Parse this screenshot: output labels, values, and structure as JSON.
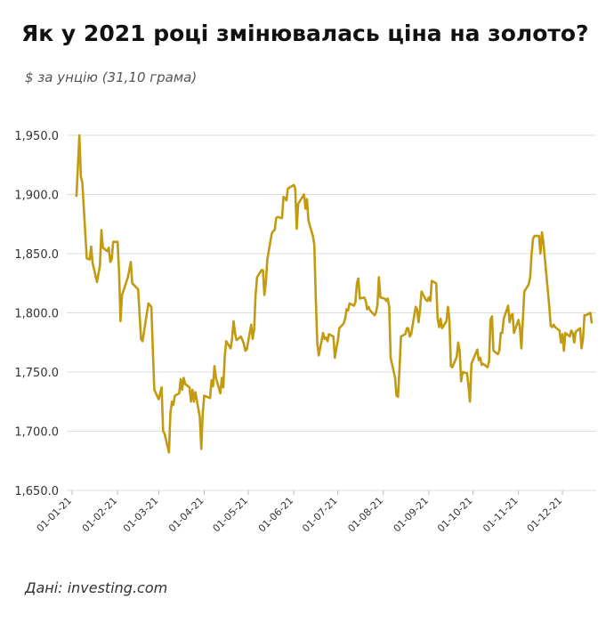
{
  "chart_data": {
    "type": "line",
    "title": "Як у 2021 році змінювалась ціна на золото?",
    "subtitle": "$ за унцію (31,10 грама)",
    "source": "Дані: investing.com",
    "x": [
      "2021-01-04",
      "2021-01-06",
      "2021-01-07",
      "2021-01-08",
      "2021-01-11",
      "2021-01-13",
      "2021-01-14",
      "2021-01-15",
      "2021-01-18",
      "2021-01-20",
      "2021-01-21",
      "2021-01-22",
      "2021-01-25",
      "2021-01-26",
      "2021-01-27",
      "2021-01-28",
      "2021-01-29",
      "2021-02-01",
      "2021-02-02",
      "2021-02-03",
      "2021-02-04",
      "2021-02-08",
      "2021-02-10",
      "2021-02-11",
      "2021-02-15",
      "2021-02-17",
      "2021-02-18",
      "2021-02-22",
      "2021-02-24",
      "2021-02-25",
      "2021-02-26",
      "2021-03-01",
      "2021-03-03",
      "2021-03-04",
      "2021-03-05",
      "2021-03-08",
      "2021-03-09",
      "2021-03-10",
      "2021-03-11",
      "2021-03-12",
      "2021-03-15",
      "2021-03-16",
      "2021-03-17",
      "2021-03-18",
      "2021-03-19",
      "2021-03-22",
      "2021-03-23",
      "2021-03-24",
      "2021-03-25",
      "2021-03-26",
      "2021-03-29",
      "2021-03-30",
      "2021-03-31",
      "2021-04-01",
      "2021-04-05",
      "2021-04-06",
      "2021-04-07",
      "2021-04-08",
      "2021-04-09",
      "2021-04-12",
      "2021-04-13",
      "2021-04-14",
      "2021-04-15",
      "2021-04-16",
      "2021-04-19",
      "2021-04-20",
      "2021-04-21",
      "2021-04-22",
      "2021-04-23",
      "2021-04-26",
      "2021-04-27",
      "2021-04-28",
      "2021-04-29",
      "2021-04-30",
      "2021-05-03",
      "2021-05-04",
      "2021-05-05",
      "2021-05-06",
      "2021-05-07",
      "2021-05-10",
      "2021-05-11",
      "2021-05-12",
      "2021-05-13",
      "2021-05-14",
      "2021-05-17",
      "2021-05-18",
      "2021-05-19",
      "2021-05-20",
      "2021-05-21",
      "2021-05-24",
      "2021-05-25",
      "2021-05-26",
      "2021-05-27",
      "2021-05-28",
      "2021-06-01",
      "2021-06-02",
      "2021-06-03",
      "2021-06-04",
      "2021-06-07",
      "2021-06-08",
      "2021-06-09",
      "2021-06-10",
      "2021-06-11",
      "2021-06-14",
      "2021-06-15",
      "2021-06-16",
      "2021-06-17",
      "2021-06-18",
      "2021-06-21",
      "2021-06-22",
      "2021-06-23",
      "2021-06-24",
      "2021-06-25",
      "2021-06-28",
      "2021-06-29",
      "2021-06-30",
      "2021-07-01",
      "2021-07-02",
      "2021-07-05",
      "2021-07-06",
      "2021-07-07",
      "2021-07-08",
      "2021-07-09",
      "2021-07-12",
      "2021-07-13",
      "2021-07-14",
      "2021-07-15",
      "2021-07-16",
      "2021-07-19",
      "2021-07-20",
      "2021-07-21",
      "2021-07-22",
      "2021-07-23",
      "2021-07-26",
      "2021-07-27",
      "2021-07-28",
      "2021-07-29",
      "2021-07-30",
      "2021-08-02",
      "2021-08-03",
      "2021-08-04",
      "2021-08-05",
      "2021-08-06",
      "2021-08-09",
      "2021-08-10",
      "2021-08-11",
      "2021-08-12",
      "2021-08-13",
      "2021-08-16",
      "2021-08-17",
      "2021-08-18",
      "2021-08-19",
      "2021-08-20",
      "2021-08-23",
      "2021-08-24",
      "2021-08-25",
      "2021-08-26",
      "2021-08-27",
      "2021-08-30",
      "2021-08-31",
      "2021-09-01",
      "2021-09-02",
      "2021-09-03",
      "2021-09-06",
      "2021-09-07",
      "2021-09-08",
      "2021-09-09",
      "2021-09-10",
      "2021-09-13",
      "2021-09-14",
      "2021-09-15",
      "2021-09-16",
      "2021-09-17",
      "2021-09-20",
      "2021-09-21",
      "2021-09-22",
      "2021-09-23",
      "2021-09-24",
      "2021-09-27",
      "2021-09-28",
      "2021-09-29",
      "2021-09-30",
      "2021-10-01",
      "2021-10-04",
      "2021-10-05",
      "2021-10-06",
      "2021-10-07",
      "2021-10-08",
      "2021-10-11",
      "2021-10-12",
      "2021-10-13",
      "2021-10-14",
      "2021-10-15",
      "2021-10-18",
      "2021-10-19",
      "2021-10-20",
      "2021-10-21",
      "2021-10-22",
      "2021-10-25",
      "2021-10-26",
      "2021-10-27",
      "2021-10-28",
      "2021-10-29",
      "2021-11-01",
      "2021-11-02",
      "2021-11-03",
      "2021-11-04",
      "2021-11-05",
      "2021-11-08",
      "2021-11-09",
      "2021-11-10",
      "2021-11-11",
      "2021-11-12",
      "2021-11-15",
      "2021-11-16",
      "2021-11-17",
      "2021-11-18",
      "2021-11-19",
      "2021-11-22",
      "2021-11-23",
      "2021-11-24",
      "2021-11-25",
      "2021-11-26",
      "2021-11-29",
      "2021-11-30",
      "2021-12-01",
      "2021-12-02",
      "2021-12-03",
      "2021-12-06",
      "2021-12-07",
      "2021-12-08",
      "2021-12-09",
      "2021-12-10",
      "2021-12-13",
      "2021-12-14",
      "2021-12-15",
      "2021-12-16",
      "2021-12-17",
      "2021-12-20",
      "2021-12-21"
    ],
    "series": [
      {
        "color": "#c39b10",
        "values": [
          1898,
          1950,
          1915,
          1910,
          1846,
          1845,
          1856,
          1842,
          1826,
          1840,
          1870,
          1855,
          1852,
          1855,
          1843,
          1845,
          1860,
          1860,
          1835,
          1793,
          1815,
          1830,
          1843,
          1825,
          1820,
          1778,
          1776,
          1808,
          1805,
          1770,
          1735,
          1727,
          1737,
          1700,
          1698,
          1682,
          1715,
          1725,
          1722,
          1730,
          1732,
          1744,
          1735,
          1745,
          1740,
          1737,
          1725,
          1735,
          1725,
          1733,
          1712,
          1685,
          1715,
          1730,
          1728,
          1743,
          1738,
          1755,
          1745,
          1732,
          1745,
          1737,
          1763,
          1776,
          1770,
          1778,
          1793,
          1783,
          1777,
          1780,
          1777,
          1774,
          1768,
          1769,
          1790,
          1778,
          1786,
          1815,
          1830,
          1836,
          1836,
          1815,
          1826,
          1845,
          1867,
          1869,
          1870,
          1880,
          1881,
          1880,
          1898,
          1897,
          1895,
          1905,
          1908,
          1905,
          1871,
          1892,
          1898,
          1900,
          1888,
          1896,
          1878,
          1865,
          1858,
          1812,
          1775,
          1764,
          1783,
          1778,
          1779,
          1776,
          1782,
          1780,
          1762,
          1770,
          1776,
          1787,
          1791,
          1795,
          1803,
          1802,
          1808,
          1806,
          1809,
          1825,
          1829,
          1812,
          1813,
          1810,
          1803,
          1805,
          1802,
          1798,
          1800,
          1807,
          1830,
          1813,
          1812,
          1810,
          1812,
          1805,
          1762,
          1745,
          1730,
          1729,
          1752,
          1780,
          1782,
          1787,
          1787,
          1780,
          1782,
          1805,
          1803,
          1792,
          1803,
          1818,
          1811,
          1810,
          1813,
          1810,
          1827,
          1825,
          1795,
          1788,
          1795,
          1787,
          1793,
          1805,
          1795,
          1755,
          1754,
          1763,
          1775,
          1768,
          1742,
          1750,
          1749,
          1738,
          1725,
          1757,
          1760,
          1769,
          1760,
          1762,
          1756,
          1757,
          1754,
          1759,
          1794,
          1797,
          1768,
          1765,
          1768,
          1783,
          1783,
          1795,
          1806,
          1792,
          1798,
          1799,
          1783,
          1794,
          1788,
          1770,
          1793,
          1818,
          1824,
          1830,
          1850,
          1863,
          1865,
          1865,
          1850,
          1868,
          1860,
          1846,
          1806,
          1789,
          1788,
          1790,
          1788,
          1785,
          1775,
          1782,
          1768,
          1783,
          1780,
          1785,
          1783,
          1775,
          1784,
          1787,
          1770,
          1778,
          1798,
          1798,
          1800,
          1791
        ]
      }
    ],
    "xlim": [
      "2021-01-01",
      "2021-12-24"
    ],
    "xticks": [
      {
        "value": "2021-01-01",
        "label": "01-01-21"
      },
      {
        "value": "2021-02-01",
        "label": "01-02-21"
      },
      {
        "value": "2021-03-01",
        "label": "01-03-21"
      },
      {
        "value": "2021-04-01",
        "label": "01-04-21"
      },
      {
        "value": "2021-05-01",
        "label": "01-05-21"
      },
      {
        "value": "2021-06-01",
        "label": "01-06-21"
      },
      {
        "value": "2021-07-01",
        "label": "01-07-21"
      },
      {
        "value": "2021-08-01",
        "label": "01-08-21"
      },
      {
        "value": "2021-09-01",
        "label": "01-09-21"
      },
      {
        "value": "2021-10-01",
        "label": "01-10-21"
      },
      {
        "value": "2021-11-01",
        "label": "01-11-21"
      },
      {
        "value": "2021-12-01",
        "label": "01-12-21"
      }
    ],
    "ylim": [
      1650,
      1950
    ],
    "yticks": [
      {
        "value": 1650,
        "label": "1,650.0"
      },
      {
        "value": 1700,
        "label": "1,700.0"
      },
      {
        "value": 1750,
        "label": "1,750.0"
      },
      {
        "value": 1800,
        "label": "1,800.0"
      },
      {
        "value": 1850,
        "label": "1,850.0"
      },
      {
        "value": 1900,
        "label": "1,900.0"
      },
      {
        "value": 1950,
        "label": "1,950.0"
      }
    ],
    "grid": true
  }
}
